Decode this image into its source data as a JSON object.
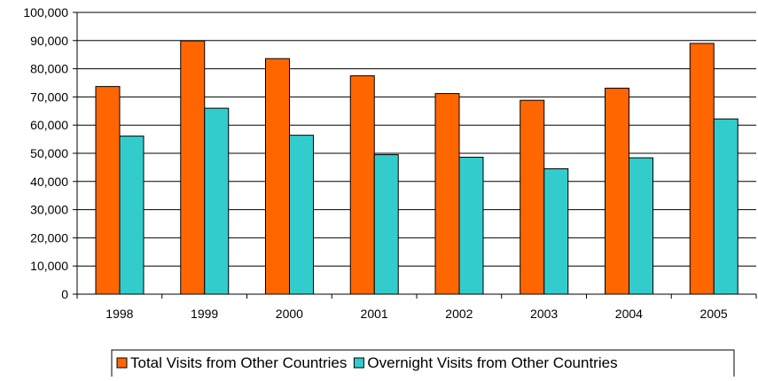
{
  "chart_data": {
    "type": "bar",
    "categories": [
      "1998",
      "1999",
      "2000",
      "2001",
      "2002",
      "2003",
      "2004",
      "2005"
    ],
    "series": [
      {
        "name": "Total Visits from Other Countries",
        "color": "#FF6600",
        "values": [
          73700,
          89900,
          83600,
          77500,
          71200,
          68800,
          73100,
          89000
        ]
      },
      {
        "name": "Overnight Visits from Other Countries",
        "color": "#33CCCC",
        "values": [
          56100,
          66000,
          56400,
          49500,
          48600,
          44500,
          48400,
          62200
        ]
      }
    ],
    "y_ticks": [
      "0",
      "10,000",
      "20,000",
      "30,000",
      "40,000",
      "50,000",
      "60,000",
      "70,000",
      "80,000",
      "90,000",
      "100,000"
    ],
    "ylim": [
      0,
      100000
    ],
    "grid": true,
    "legend_position": "bottom"
  }
}
